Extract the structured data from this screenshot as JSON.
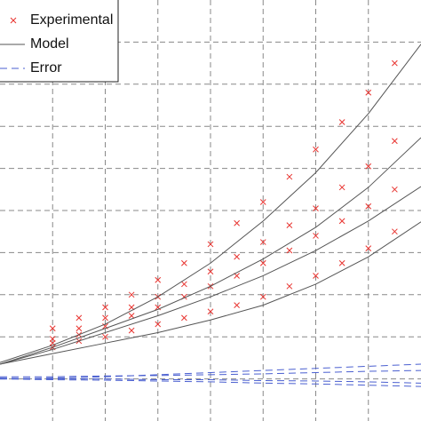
{
  "chart_data": {
    "type": "line",
    "xlim": [
      0,
      8
    ],
    "ylim": [
      0,
      10
    ],
    "xticks": [
      1,
      2,
      3,
      4,
      5,
      6,
      7
    ],
    "yticks": [
      1,
      2,
      3,
      4,
      5,
      6,
      7,
      8,
      9
    ],
    "grid": true,
    "legend": "upper left",
    "series": [
      {
        "name": "Experimental",
        "color": "#e8332f",
        "style": "marker",
        "x": [
          1,
          1.5,
          2,
          2.5,
          3,
          3.5,
          4,
          4.5,
          5,
          5.5,
          6,
          6.5,
          7,
          7.5
        ],
        "curves": [
          [
            2.2,
            2.45,
            2.7,
            3.0,
            3.35,
            3.75,
            4.2,
            4.7,
            5.2,
            5.8,
            6.45,
            7.1,
            7.8,
            8.5
          ],
          [
            1.95,
            2.2,
            2.45,
            2.7,
            2.95,
            3.25,
            3.55,
            3.9,
            4.25,
            4.65,
            5.05,
            5.55,
            6.05,
            6.65
          ],
          [
            1.85,
            2.05,
            2.25,
            2.5,
            2.7,
            2.95,
            3.2,
            3.45,
            3.75,
            4.05,
            4.4,
            4.75,
            5.1,
            5.5
          ],
          [
            1.75,
            1.9,
            2.0,
            2.15,
            2.3,
            2.45,
            2.6,
            2.75,
            2.95,
            3.2,
            3.45,
            3.75,
            4.1,
            4.5
          ]
        ]
      },
      {
        "name": "Model",
        "color": "#555555",
        "style": "line",
        "x": [
          0,
          1,
          2,
          3,
          4,
          5,
          6,
          7,
          8
        ],
        "curves": [
          [
            1.39,
            1.8,
            2.3,
            2.95,
            3.75,
            4.75,
            5.9,
            7.3,
            8.95
          ],
          [
            1.35,
            1.75,
            2.2,
            2.65,
            3.2,
            3.85,
            4.6,
            5.55,
            6.73
          ],
          [
            1.35,
            1.7,
            2.1,
            2.5,
            2.95,
            3.45,
            4.05,
            4.75,
            5.57
          ],
          [
            1.35,
            1.6,
            1.85,
            2.1,
            2.4,
            2.75,
            3.25,
            3.9,
            4.73
          ]
        ]
      },
      {
        "name": "Error",
        "color": "#4a5fd0",
        "style": "dashed",
        "x": [
          0,
          1,
          2,
          3,
          4,
          5,
          6,
          7,
          8
        ],
        "curves": [
          [
            1.0,
            1.02,
            1.05,
            1.1,
            1.15,
            1.2,
            1.25,
            1.3,
            1.35
          ],
          [
            1.05,
            1.05,
            1.07,
            1.08,
            1.1,
            1.12,
            1.15,
            1.18,
            1.2
          ],
          [
            1.0,
            0.98,
            0.97,
            0.95,
            0.93,
            0.9,
            0.88,
            0.85,
            0.82
          ],
          [
            1.02,
            1.0,
            1.0,
            0.98,
            0.98,
            0.96,
            0.95,
            0.93,
            0.9
          ]
        ]
      }
    ]
  }
}
